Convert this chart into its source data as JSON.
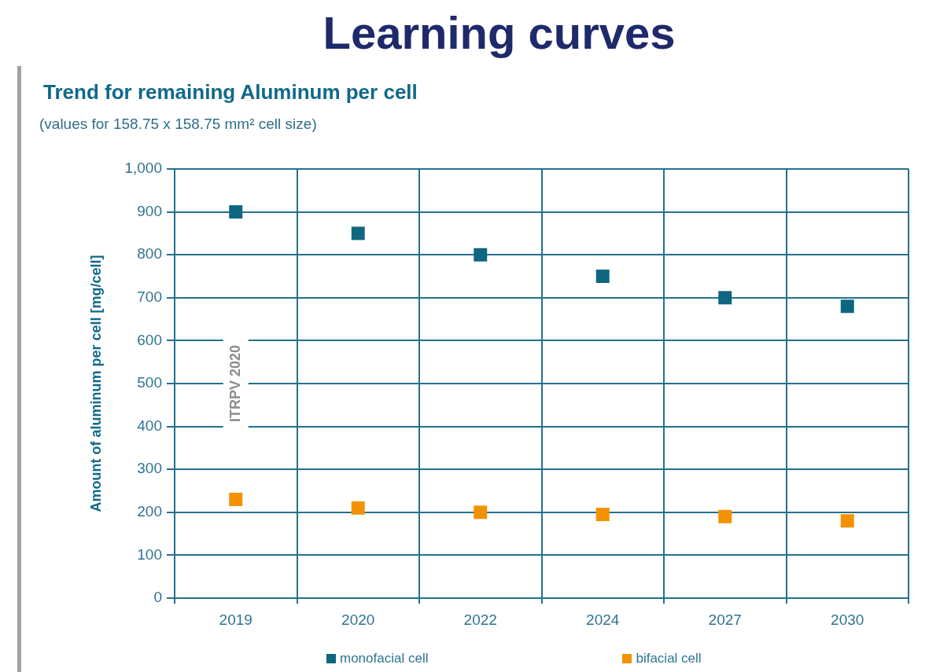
{
  "chart_data": {
    "type": "scatter",
    "title": "Learning curves",
    "subtitle": "Trend for remaining Aluminum per cell",
    "ylabel": "Amount of aluminum per cell [mg/cell]",
    "annotations": [
      "(values for 158.75 x 158.75 mm² cell size)",
      "ITRPV 2020"
    ],
    "categories": [
      "2019",
      "2020",
      "2022",
      "2024",
      "2027",
      "2030"
    ],
    "series": [
      {
        "name": "monofacial cell",
        "color": "#0e6680",
        "values": [
          900,
          850,
          800,
          750,
          700,
          680
        ]
      },
      {
        "name": "bifacial cell",
        "color": "#f39200",
        "values": [
          230,
          210,
          200,
          195,
          190,
          180
        ]
      }
    ],
    "ylim": [
      0,
      1000
    ],
    "yticks": [
      0,
      100,
      200,
      300,
      400,
      500,
      600,
      700,
      800,
      900,
      {
        "value": 1000,
        "label": "1,000"
      }
    ],
    "grid": true,
    "legend": "bottom",
    "marker": "square"
  }
}
